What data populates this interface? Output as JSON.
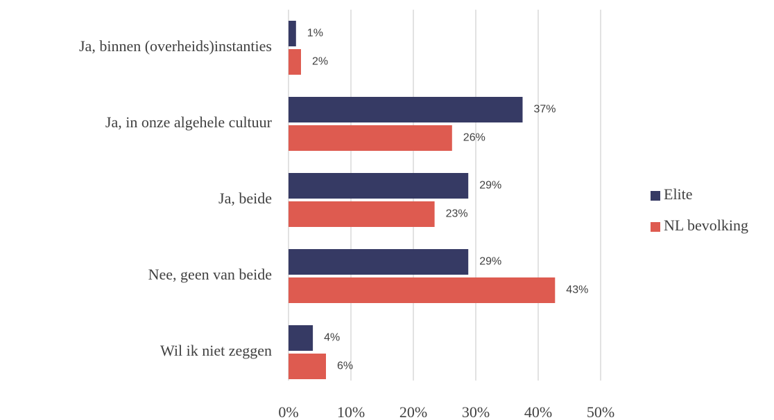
{
  "chart_data": {
    "type": "bar",
    "orientation": "horizontal",
    "categories": [
      "Ja, binnen (overheids)instanties",
      "Ja, in onze algehele cultuur",
      "Ja, beide",
      "Nee, geen van beide",
      "Wil ik niet zeggen"
    ],
    "series": [
      {
        "name": "Elite",
        "color": "#363a64",
        "values": [
          1.2,
          37.5,
          28.8,
          28.8,
          3.9
        ],
        "value_labels": [
          "1%",
          "37%",
          "29%",
          "29%",
          "4%"
        ]
      },
      {
        "name": "NL bevolking",
        "color": "#de5b50",
        "values": [
          2.0,
          26.2,
          23.4,
          42.7,
          6.0
        ],
        "value_labels": [
          "2%",
          "26%",
          "23%",
          "43%",
          "6%"
        ]
      }
    ],
    "xlim": [
      0,
      50
    ],
    "xticks": [
      {
        "value": 0,
        "label": "0%"
      },
      {
        "value": 10,
        "label": "10%"
      },
      {
        "value": 20,
        "label": "20%"
      },
      {
        "value": 30,
        "label": "30%"
      },
      {
        "value": 40,
        "label": "40%"
      },
      {
        "value": 50,
        "label": "50%"
      }
    ],
    "grid": true,
    "legend": "right"
  }
}
